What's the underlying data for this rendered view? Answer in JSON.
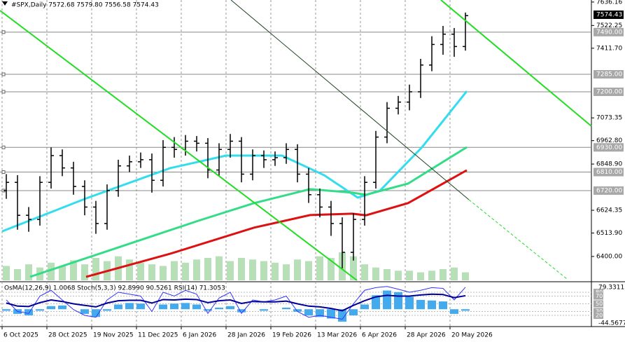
{
  "chart_data": {
    "type": "candlestick",
    "title": "#SPX,Daily  7572.68 7579.80 7556.58 7574.43",
    "open": [
      6720,
      6760,
      6600,
      6580,
      6760,
      6890,
      6830,
      6740,
      6640,
      6560,
      6720,
      6840,
      6860,
      6870,
      6770,
      6930,
      6920,
      6960,
      6950,
      6820,
      6920,
      6960,
      6800,
      6890,
      6870,
      6880,
      6920,
      6800,
      6700,
      6640,
      6560,
      6420,
      6580,
      6760,
      6980,
      7120,
      7150,
      7200,
      7330,
      7430,
      7480,
      7420
    ],
    "high": [
      6800,
      6795,
      6640,
      6790,
      6930,
      6920,
      6860,
      6770,
      6670,
      6750,
      6870,
      6890,
      6905,
      6900,
      6965,
      6980,
      6990,
      6985,
      6975,
      6950,
      6995,
      6980,
      6920,
      6915,
      6910,
      6950,
      6945,
      6830,
      6730,
      6670,
      6590,
      6610,
      6790,
      7010,
      7150,
      7180,
      7235,
      7360,
      7470,
      7520,
      7510,
      7585
    ],
    "low": [
      6680,
      6530,
      6520,
      6550,
      6730,
      6790,
      6700,
      6600,
      6510,
      6530,
      6690,
      6810,
      6830,
      6710,
      6740,
      6880,
      6890,
      6910,
      6780,
      6790,
      6880,
      6760,
      6770,
      6830,
      6840,
      6850,
      6760,
      6660,
      6590,
      6500,
      6342,
      6380,
      6550,
      6730,
      6950,
      7090,
      7110,
      7170,
      7300,
      7380,
      7370,
      7400
    ],
    "close": [
      6760,
      6600,
      6580,
      6760,
      6890,
      6830,
      6740,
      6640,
      6560,
      6720,
      6840,
      6860,
      6870,
      6770,
      6930,
      6920,
      6960,
      6950,
      6820,
      6920,
      6960,
      6800,
      6890,
      6870,
      6880,
      6920,
      6800,
      6700,
      6640,
      6560,
      6420,
      6580,
      6760,
      6980,
      7120,
      7150,
      7200,
      7330,
      7430,
      7480,
      7420,
      7570
    ],
    "volume": [
      18,
      14,
      20,
      16,
      22,
      18,
      25,
      20,
      28,
      24,
      30,
      26,
      22,
      20,
      18,
      24,
      22,
      26,
      28,
      30,
      24,
      28,
      26,
      24,
      22,
      20,
      26,
      24,
      30,
      28,
      35,
      30,
      20,
      16,
      14,
      12,
      12,
      10,
      12,
      14,
      16,
      10
    ],
    "moving_averages": [
      {
        "color": "#33ddee",
        "x": [
          0,
          30,
          60,
          80,
          100,
          115,
          127,
          135,
          150,
          166
        ],
        "values": [
          6522,
          6682,
          6829,
          6890,
          6890,
          6795,
          6686,
          6720,
          6931,
          7203
        ]
      },
      {
        "color": "#33dd88",
        "x": [
          10,
          40,
          70,
          90,
          110,
          125,
          130,
          145,
          166
        ],
        "values": [
          6301,
          6437,
          6573,
          6659,
          6727,
          6710,
          6700,
          6754,
          6931
        ]
      },
      {
        "color": "#dd1111",
        "x": [
          30,
          60,
          90,
          110,
          125,
          130,
          145,
          166
        ],
        "values": [
          6301,
          6413,
          6540,
          6601,
          6608,
          6600,
          6659,
          6819
        ]
      }
    ],
    "ylim": [
      6284,
      7646
    ],
    "yticks": [
      7636.16,
      7522.25,
      {
        "value": 7411.7,
        "label": "7411.70"
      },
      7073.35,
      {
        "value": 6962.8,
        "label": "6962.80"
      },
      {
        "value": 6848.9,
        "label": "6848.90"
      },
      6624.35,
      {
        "value": 6513.9,
        "label": "6513.90"
      },
      {
        "value": 6400,
        "label": "6400.00"
      }
    ],
    "levels": [
      {
        "value": 7490,
        "label": "7490.00"
      },
      {
        "value": 7285,
        "label": "7285.00"
      },
      {
        "value": 7200,
        "label": "7200.00"
      },
      {
        "value": 6930,
        "label": "6930.00"
      },
      {
        "value": 6810,
        "label": "6810.00"
      },
      {
        "value": 6720,
        "label": "6720.00"
      }
    ],
    "last_price": 7574.43,
    "xlim": [
      -0.75,
      210.5
    ],
    "xticks": [
      {
        "value": 0,
        "label": "6 Oct 2025"
      },
      {
        "value": 16,
        "label": "28 Oct 2025"
      },
      {
        "value": 32,
        "label": "19 Nov 2025"
      },
      {
        "value": 48,
        "label": "11 Dec 2025"
      },
      {
        "value": 64,
        "label": "6 Jan 2026"
      },
      {
        "value": 80,
        "label": "28 Jan 2026"
      },
      {
        "value": 96,
        "label": "19 Feb 2026"
      },
      {
        "value": 112,
        "label": "13 Mar 2026"
      },
      {
        "value": 128,
        "label": "6 Apr 2026"
      },
      {
        "value": 144,
        "label": "28 Apr 2026"
      },
      {
        "value": 160,
        "label": "20 May 2026"
      }
    ],
    "indicator": {
      "title": "OsMA(12,26,9) 1.0068 Stoch(5,3,3) 92.8990 90.5261 RSI(14) 71.3053",
      "osma_lim": [
        -44.5677,
        79.3311
      ],
      "osma": [
        -5,
        -15,
        -20,
        -5,
        10,
        12,
        0,
        -15,
        -25,
        -5,
        15,
        20,
        18,
        0,
        15,
        18,
        20,
        15,
        -5,
        5,
        10,
        -10,
        0,
        -5,
        0,
        5,
        -8,
        -20,
        -25,
        -30,
        -40,
        -20,
        15,
        45,
        60,
        55,
        40,
        30,
        28,
        25,
        -15,
        -5
      ],
      "ylim": [
        0,
        100
      ],
      "yticks": [
        80,
        70,
        50,
        30,
        20
      ],
      "series": [
        {
          "color": "#3333ff",
          "values": [
            60,
            30,
            25,
            70,
            85,
            60,
            35,
            20,
            15,
            60,
            80,
            75,
            70,
            30,
            80,
            70,
            85,
            75,
            25,
            65,
            80,
            25,
            60,
            55,
            60,
            70,
            30,
            15,
            20,
            15,
            10,
            50,
            85,
            92,
            95,
            88,
            80,
            85,
            92,
            90,
            60,
            93
          ]
        },
        {
          "color": "#000099",
          "values": [
            52,
            44,
            43,
            53,
            60,
            56,
            50,
            46,
            42,
            52,
            58,
            59,
            59,
            52,
            61,
            60,
            62,
            61,
            53,
            58,
            60,
            51,
            56,
            55,
            55,
            57,
            50,
            44,
            42,
            38,
            32,
            46,
            58,
            68,
            72,
            70,
            70,
            73,
            75,
            74,
            66,
            71
          ]
        }
      ]
    }
  }
}
